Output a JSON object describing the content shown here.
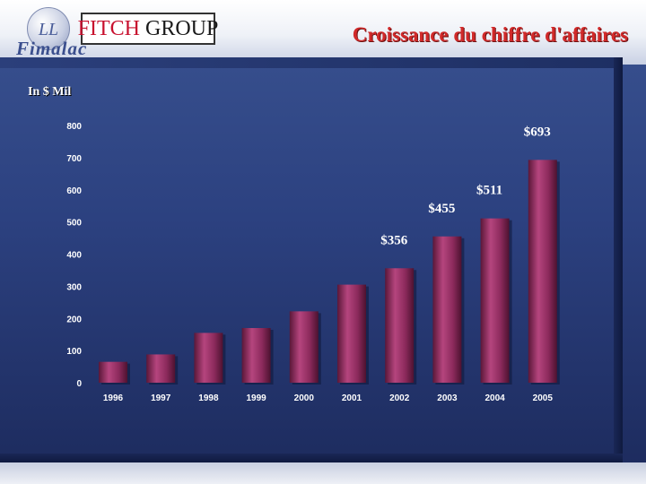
{
  "header": {
    "title": "Croissance du chiffre d'affaires",
    "brand_fimalac": "Fimalac",
    "brand_fitch": "FITCH",
    "brand_group": "GROUP",
    "logo_monogram": "LL"
  },
  "colors": {
    "background": "#2c4180",
    "title": "#d12a2a",
    "bar": "#8c2a5c",
    "bar_highlight": "#b5457e",
    "bar_shadow": "#4d1230",
    "text": "#ffffff"
  },
  "chart_data": {
    "type": "bar",
    "title": "Croissance du chiffre d'affaires",
    "ylabel": "In $ Mil",
    "xlabel": "",
    "categories": [
      "1996",
      "1997",
      "1998",
      "1999",
      "2000",
      "2001",
      "2002",
      "2003",
      "2004",
      "2005"
    ],
    "values": [
      65,
      88,
      155,
      170,
      222,
      305,
      356,
      455,
      511,
      693
    ],
    "data_labels": [
      "",
      "",
      "",
      "",
      "",
      "",
      "$356",
      "$455",
      "$511",
      "$693"
    ],
    "ylim": [
      0,
      800
    ],
    "yticks": [
      "0",
      "100",
      "200",
      "300",
      "400",
      "500",
      "600",
      "700",
      "800"
    ],
    "grid": false,
    "legend": "none"
  }
}
